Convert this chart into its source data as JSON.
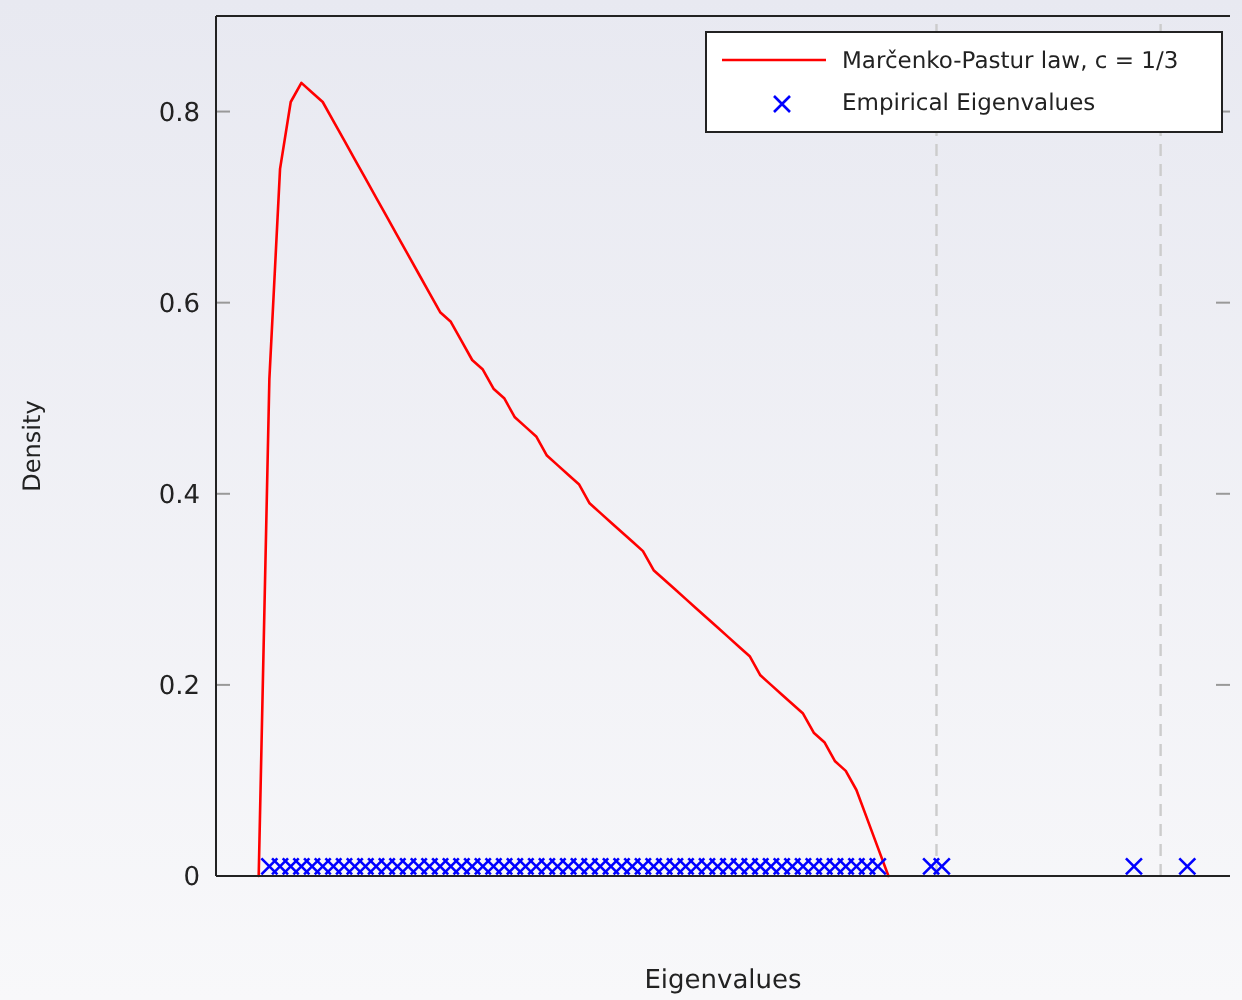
{
  "chart_data": {
    "type": "line",
    "xlabel": "Eigenvalues",
    "ylabel": "Density",
    "ylim": [
      0,
      0.9
    ],
    "yticks": [
      0,
      0.2,
      0.4,
      0.6,
      0.8
    ],
    "legend": "top right",
    "categories": [
      null,
      null,
      null,
      null,
      null,
      null,
      null,
      null,
      null,
      null,
      null,
      null,
      null,
      null,
      null,
      null,
      null,
      null,
      null,
      null,
      null,
      null,
      null,
      null,
      null,
      null,
      null,
      null,
      null,
      null,
      null,
      null,
      null,
      null,
      null,
      null,
      null,
      null,
      null,
      null,
      null,
      null,
      null,
      null,
      null,
      null,
      null,
      null,
      null,
      null,
      null,
      null,
      null,
      null,
      null,
      null,
      null,
      null,
      null,
      null,
      null,
      null,
      null,
      null,
      null,
      null,
      null,
      null,
      null,
      null,
      null,
      null,
      null,
      null,
      null,
      null,
      null,
      null,
      null,
      null,
      null,
      null,
      null,
      null,
      null,
      null,
      null,
      null,
      null,
      null,
      null,
      null,
      null,
      null,
      null,
      null
    ],
    "series": [
      {
        "name": "Marčenko-Pastur law, c = 1/3",
        "color": "#ff0000",
        "marker": "none",
        "line_style": "solid",
        "values": [
          null,
          null,
          null,
          null,
          0,
          0.52,
          0.74,
          0.81,
          0.83,
          0.82,
          0.81,
          0.79,
          0.77,
          0.75,
          0.73,
          0.71,
          0.69,
          0.67,
          0.65,
          0.63,
          0.61,
          0.59,
          0.58,
          0.56,
          0.54,
          0.53,
          0.51,
          0.5,
          0.48,
          0.47,
          0.46,
          0.44,
          0.43,
          0.42,
          0.41,
          0.39,
          0.38,
          0.37,
          0.36,
          0.35,
          0.34,
          0.32,
          0.31,
          0.3,
          0.29,
          0.28,
          0.27,
          0.26,
          0.25,
          0.24,
          0.23,
          0.21,
          0.2,
          0.19,
          0.18,
          0.17,
          0.15,
          0.14,
          0.12,
          0.11,
          0.09,
          0.06,
          0.03,
          0,
          null,
          null,
          null,
          null,
          null,
          null,
          null,
          null,
          null,
          null,
          null,
          null,
          null,
          null,
          null,
          null,
          null,
          null,
          null,
          null,
          null,
          null,
          null,
          null,
          null,
          null,
          null,
          null,
          null,
          null,
          null,
          null
        ]
      },
      {
        "name": "Empirical Eigenvalues",
        "type": "scatter",
        "color": "#0000ff",
        "marker": "cross",
        "values": [
          null,
          null,
          null,
          null,
          null,
          0.01,
          0.01,
          0.01,
          0.01,
          0.01,
          0.01,
          0.01,
          0.01,
          0.01,
          0.01,
          0.01,
          0.01,
          0.01,
          0.01,
          0.01,
          0.01,
          0.01,
          0.01,
          0.01,
          0.01,
          0.01,
          0.01,
          0.01,
          0.01,
          0.01,
          0.01,
          0.01,
          0.01,
          0.01,
          0.01,
          0.01,
          0.01,
          0.01,
          0.01,
          0.01,
          0.01,
          0.01,
          0.01,
          0.01,
          0.01,
          0.01,
          0.01,
          0.01,
          0.01,
          0.01,
          0.01,
          0.01,
          0.01,
          0.01,
          0.01,
          0.01,
          0.01,
          0.01,
          0.01,
          0.01,
          0.01,
          0.01,
          0.01,
          null,
          null,
          null,
          null,
          0.01,
          0.01,
          null,
          null,
          null,
          null,
          null,
          null,
          null,
          null,
          null,
          null,
          null,
          null,
          null,
          null,
          null,
          null,
          null,
          0.01,
          null,
          null,
          null,
          null,
          0.01,
          null,
          null,
          null,
          null
        ]
      }
    ]
  }
}
